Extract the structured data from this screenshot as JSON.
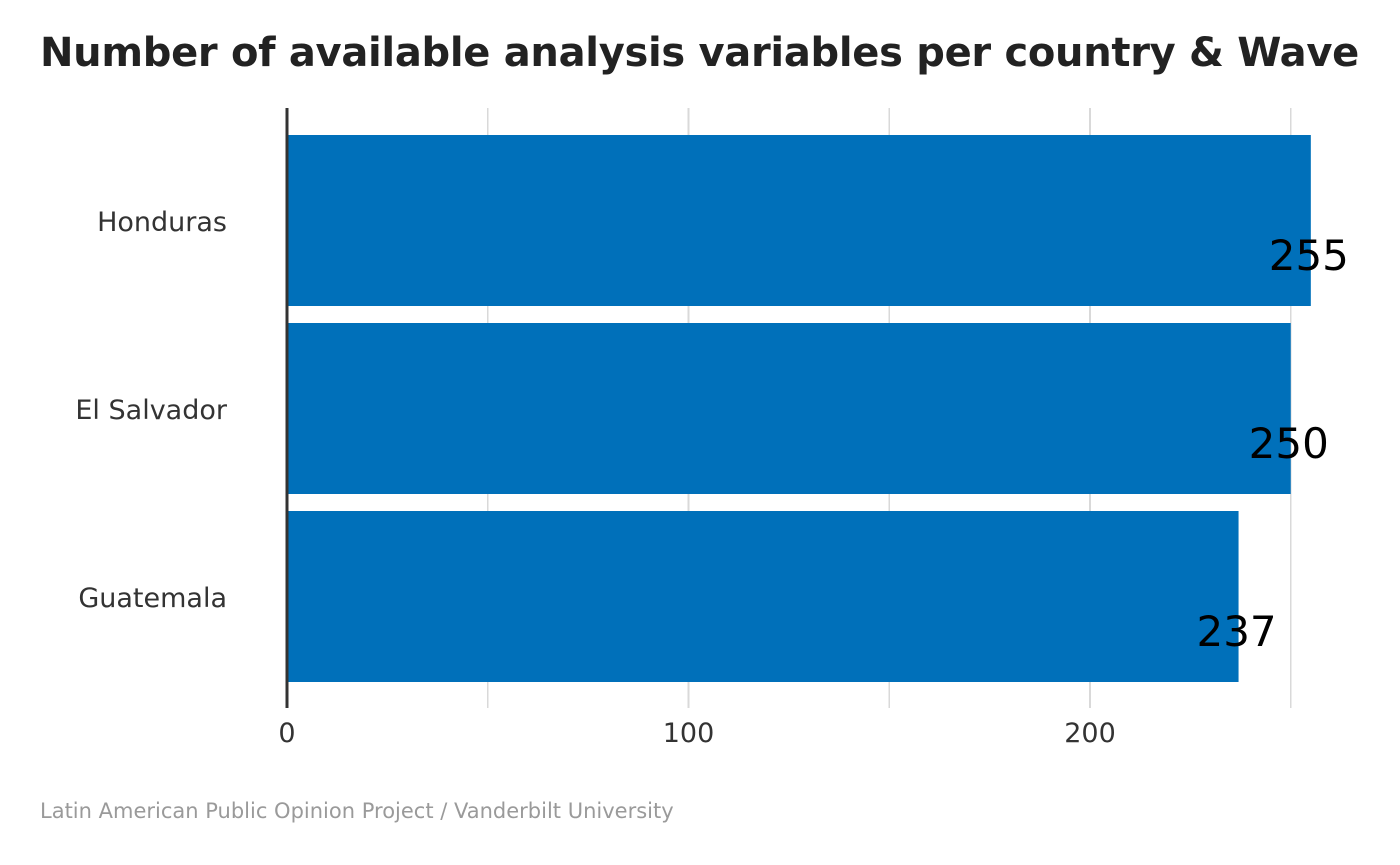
{
  "chart_data": {
    "type": "bar",
    "orientation": "horizontal",
    "title": "Number of available analysis variables per country & Wave",
    "caption": "Latin American Public Opinion Project / Vanderbilt University",
    "categories": [
      "Honduras",
      "El Salvador",
      "Guatemala"
    ],
    "values": [
      255,
      250,
      237
    ],
    "value_labels": [
      "255",
      "250",
      "237"
    ],
    "x_ticks": [
      0,
      100,
      200
    ],
    "x_tick_labels": [
      "0",
      "100",
      "200"
    ],
    "xlim": [
      0,
      255
    ],
    "grid": true,
    "legend": "none",
    "xlabel": "",
    "ylabel": "",
    "colors": {
      "bar": "#0070ba",
      "grid": "#d9d9d9",
      "axis": "#333333"
    }
  }
}
